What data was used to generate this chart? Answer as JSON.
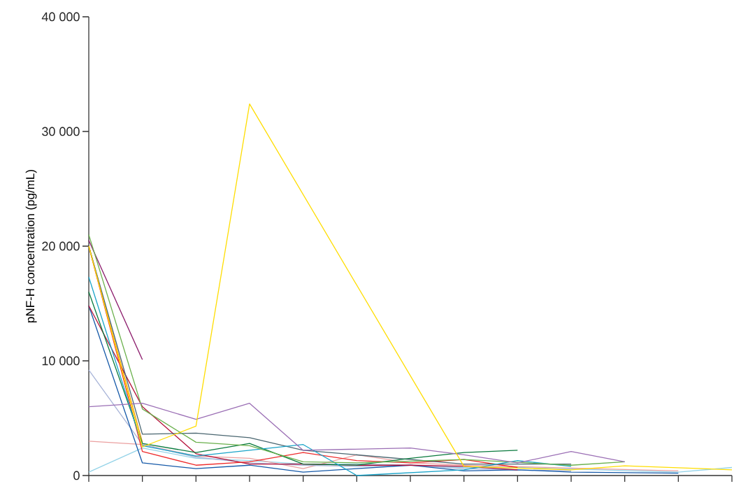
{
  "chart_data": {
    "type": "line",
    "ylabel": "pNF-H concentration (pg/mL)",
    "categories": [
      null,
      null,
      null,
      null,
      null,
      null,
      null,
      null,
      null,
      null,
      null,
      null,
      null
    ],
    "ylim": [
      0,
      40000
    ],
    "yticks": [
      0,
      {
        "value": 10000,
        "label": "10 000"
      },
      {
        "value": 20000,
        "label": "20 000"
      },
      {
        "value": 30000,
        "label": "30 000"
      },
      {
        "value": 40000,
        "label": "40 000"
      }
    ],
    "tick_labels": "y",
    "grid": false,
    "marker": "none",
    "line_style": "solid",
    "series": [
      {
        "color": "#f39c12",
        "values": [
          20000,
          2900,
          null,
          null,
          null,
          null,
          null,
          null,
          null,
          null,
          null,
          null,
          null
        ]
      },
      {
        "color": "#8b1a6b",
        "values": [
          20500,
          10100,
          null,
          null,
          null,
          null,
          null,
          null,
          null,
          null,
          null,
          null,
          null
        ]
      },
      {
        "color": "#94d3e8",
        "values": [
          300,
          2400,
          1500,
          1300,
          1000,
          1000,
          900,
          700,
          700,
          null,
          null,
          300,
          700
        ]
      },
      {
        "color": "#eba0a0",
        "values": [
          3000,
          2700,
          1700,
          1500,
          600,
          1800,
          1100,
          900,
          null,
          null,
          null,
          400,
          null
        ]
      },
      {
        "color": "#a8b4d8",
        "values": [
          9200,
          2700,
          1600,
          1100,
          900,
          800,
          900,
          600,
          500,
          400,
          null,
          null,
          null
        ]
      },
      {
        "color": "#1559a8",
        "values": [
          14800,
          1100,
          600,
          900,
          300,
          600,
          900,
          400,
          500,
          300,
          null,
          200,
          null
        ]
      },
      {
        "color": "#b5123a",
        "values": [
          14800,
          6000,
          1900,
          1000,
          1000,
          900,
          900,
          800,
          500,
          null,
          null,
          null,
          null
        ]
      },
      {
        "color": "#ee2c2c",
        "values": [
          20000,
          2100,
          900,
          1200,
          2000,
          1300,
          1100,
          1400,
          700,
          null,
          null,
          null,
          null
        ]
      },
      {
        "color": "#4a6670",
        "values": [
          20000,
          3600,
          3700,
          3300,
          2200,
          null,
          null,
          1000,
          null,
          1000,
          null,
          null,
          null
        ]
      },
      {
        "color": "#0a7a3e",
        "values": [
          16000,
          2800,
          2000,
          2800,
          1000,
          900,
          1500,
          2000,
          2200,
          null,
          null,
          null,
          null
        ]
      },
      {
        "color": "#1aa3c8",
        "values": [
          17300,
          2600,
          1700,
          2200,
          2700,
          0,
          null,
          500,
          1300,
          800,
          null,
          null,
          null
        ]
      },
      {
        "color": "#6ab04c",
        "values": [
          21000,
          5800,
          2900,
          2600,
          1200,
          1100,
          null,
          1400,
          null,
          900,
          1200,
          null,
          null
        ]
      },
      {
        "color": "#9b6fb5",
        "values": [
          6000,
          6300,
          4900,
          6300,
          2200,
          null,
          2400,
          1800,
          1100,
          2100,
          1200,
          null,
          null
        ]
      },
      {
        "color": "#ffdd00",
        "values": [
          20000,
          2500,
          4300,
          32400,
          null,
          null,
          null,
          800,
          null,
          500,
          850,
          null,
          500
        ]
      }
    ]
  }
}
